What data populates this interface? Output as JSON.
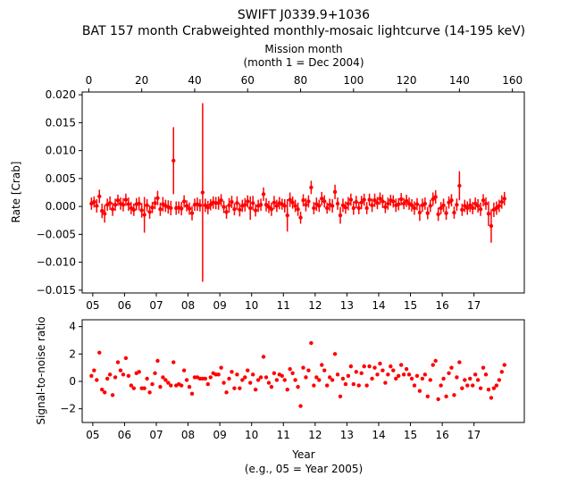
{
  "title_line1": "SWIFT J0339.9+1036",
  "title_line2": "BAT 157 month Crabweighted monthly-mosaic lightcurve (14-195 keV)",
  "colors": {
    "data": "#ff0000",
    "axes": "#000000"
  },
  "chart_data": [
    {
      "type": "scatter",
      "panel": "top",
      "ylabel": "Rate [Crab]",
      "top_axis_label_line1": "Mission month",
      "top_axis_label_line2": "(month 1 = Dec 2004)",
      "top_ticks": [
        0,
        20,
        40,
        60,
        80,
        100,
        120,
        140,
        160
      ],
      "top_tick_labels": [
        "0",
        "20",
        "40",
        "60",
        "80",
        "100",
        "120",
        "140",
        "160"
      ],
      "xlim_month": [
        -2.5,
        164.5
      ],
      "ylim": [
        -0.0155,
        0.0205
      ],
      "y_ticks": [
        -0.015,
        -0.01,
        -0.005,
        0.0,
        0.005,
        0.01,
        0.015,
        0.02
      ],
      "y_tick_labels": [
        "−0.015",
        "−0.010",
        "−0.005",
        "0.000",
        "0.005",
        "0.010",
        "0.015",
        "0.020"
      ],
      "x_ticks_month": [
        1.5,
        13.5,
        25.5,
        37.5,
        49.5,
        61.5,
        73.5,
        85.5,
        97.5,
        109.5,
        121.5,
        133.5,
        145.5
      ],
      "x_tick_labels": [
        "05",
        "06",
        "07",
        "08",
        "09",
        "10",
        "11",
        "12",
        "13",
        "14",
        "15",
        "16",
        "17"
      ],
      "months": [
        1,
        2,
        3,
        4,
        5,
        6,
        7,
        8,
        9,
        10,
        11,
        12,
        13,
        14,
        15,
        16,
        17,
        18,
        19,
        20,
        21,
        22,
        23,
        24,
        25,
        26,
        27,
        28,
        29,
        30,
        31,
        32,
        33,
        34,
        35,
        36,
        37,
        38,
        39,
        40,
        41,
        42,
        43,
        44,
        45,
        46,
        47,
        48,
        49,
        50,
        51,
        52,
        53,
        54,
        55,
        56,
        57,
        58,
        59,
        60,
        61,
        62,
        63,
        64,
        65,
        66,
        67,
        68,
        69,
        70,
        71,
        72,
        73,
        74,
        75,
        76,
        77,
        78,
        79,
        80,
        81,
        82,
        83,
        84,
        85,
        86,
        87,
        88,
        89,
        90,
        91,
        92,
        93,
        94,
        95,
        96,
        97,
        98,
        99,
        100,
        101,
        102,
        103,
        104,
        105,
        106,
        107,
        108,
        109,
        110,
        111,
        112,
        113,
        114,
        115,
        116,
        117,
        118,
        119,
        120,
        121,
        122,
        123,
        124,
        125,
        126,
        127,
        128,
        129,
        130,
        131,
        132,
        133,
        134,
        135,
        136,
        137,
        138,
        139,
        140,
        141,
        142,
        143,
        144,
        145,
        146,
        147,
        148,
        149,
        150,
        151,
        152,
        153,
        154,
        155,
        156,
        157
      ],
      "rate": [
        0.0005,
        0.0008,
        0.0001,
        0.0018,
        -0.0008,
        -0.0013,
        0.0003,
        0.0006,
        -0.0005,
        0.0003,
        0.0011,
        0.0005,
        0.0003,
        0.0012,
        0.0004,
        -0.0003,
        -0.0006,
        0.0004,
        0.0005,
        -0.0007,
        -0.0015,
        0.0002,
        -0.001,
        -0.0002,
        0.0006,
        0.0015,
        -0.0005,
        0.0004,
        0.0001,
        -0.0001,
        -0.0003,
        0.0082,
        -0.0003,
        -0.0002,
        -0.0004,
        0.0009,
        0.0001,
        -0.0004,
        -0.0012,
        0.0003,
        0.0004,
        0.0002,
        0.0025,
        0.0002,
        -0.0002,
        0.0003,
        0.0007,
        0.0006,
        0.0006,
        0.0011,
        -0.0001,
        -0.001,
        0.0002,
        0.0008,
        -0.0005,
        0.0006,
        -0.0006,
        0.0001,
        0.0003,
        0.0009,
        -0.0003,
        0.0006,
        -0.0007,
        0.0001,
        0.0003,
        0.0022,
        0.0003,
        -0.0001,
        -0.0005,
        0.0007,
        0.0001,
        0.0006,
        0.0004,
        0.0001,
        -0.0016,
        0.0012,
        0.0007,
        0.0001,
        -0.0005,
        -0.002,
        0.0011,
        0.0003,
        0.0009,
        0.0034,
        -0.0003,
        0.0004,
        0.0001,
        0.0014,
        0.0009,
        -0.0003,
        0.0003,
        0.0001,
        0.0026,
        0.0005,
        -0.0016,
        0.0002,
        -0.0002,
        0.0005,
        0.0012,
        -0.0003,
        0.0008,
        -0.0003,
        0.0007,
        0.0012,
        -0.0003,
        0.0012,
        0.0002,
        0.0011,
        0.0006,
        0.0014,
        0.0009,
        -0.0001,
        0.0005,
        0.0011,
        0.0009,
        0.0002,
        0.0004,
        0.0013,
        0.0005,
        0.001,
        0.0005,
        0.0002,
        -0.0003,
        0.0004,
        -0.0011,
        0.0002,
        0.0005,
        -0.0012,
        0.0001,
        0.0013,
        0.0017,
        -0.0014,
        -0.0003,
        0.0002,
        -0.0012,
        0.0007,
        0.0011,
        -0.0011,
        0.0003,
        0.0037,
        -0.0006,
        0.0001,
        -0.0003,
        0.0002,
        -0.0003,
        0.0005,
        0.0001,
        -0.0005,
        0.0011,
        0.0005,
        -0.0013,
        -0.0035,
        -0.0006,
        -0.0003,
        0.0001,
        0.0008,
        0.0014,
        0.0025,
        0.0007
      ],
      "rate_err": [
        0.0011,
        0.001,
        0.0012,
        0.0012,
        0.0013,
        0.0016,
        0.0011,
        0.0012,
        0.0012,
        0.0011,
        0.001,
        0.0011,
        0.0012,
        0.0011,
        0.0012,
        0.0011,
        0.0011,
        0.0011,
        0.0012,
        0.0013,
        0.0032,
        0.0011,
        0.0012,
        0.001,
        0.0011,
        0.0013,
        0.0012,
        0.0013,
        0.0011,
        0.0012,
        0.0013,
        0.006,
        0.0012,
        0.0011,
        0.0012,
        0.0011,
        0.001,
        0.0011,
        0.0013,
        0.0011,
        0.0012,
        0.0011,
        0.016,
        0.0012,
        0.0012,
        0.001,
        0.0011,
        0.0011,
        0.0012,
        0.0011,
        0.0011,
        0.0012,
        0.0013,
        0.0011,
        0.0011,
        0.0012,
        0.0012,
        0.0011,
        0.0012,
        0.0011,
        0.0021,
        0.0013,
        0.0011,
        0.0011,
        0.0011,
        0.0012,
        0.0012,
        0.0011,
        0.0012,
        0.0012,
        0.0011,
        0.0011,
        0.001,
        0.0012,
        0.0029,
        0.0013,
        0.0011,
        0.0011,
        0.0012,
        0.0011,
        0.0011,
        0.0012,
        0.0011,
        0.0012,
        0.0011,
        0.0012,
        0.0011,
        0.0012,
        0.0011,
        0.001,
        0.0011,
        0.0012,
        0.0013,
        0.0011,
        0.0015,
        0.0012,
        0.0011,
        0.0012,
        0.0011,
        0.0012,
        0.0011,
        0.0011,
        0.0012,
        0.0011,
        0.0011,
        0.0011,
        0.0012,
        0.0012,
        0.0011,
        0.0011,
        0.0012,
        0.0011,
        0.0011,
        0.001,
        0.0011,
        0.0012,
        0.0011,
        0.0011,
        0.001,
        0.0011,
        0.0011,
        0.0011,
        0.0012,
        0.0011,
        0.0015,
        0.0012,
        0.0011,
        0.0011,
        0.0011,
        0.0012,
        0.0012,
        0.0012,
        0.0011,
        0.0012,
        0.0012,
        0.0011,
        0.0011,
        0.0011,
        0.0011,
        0.0026,
        0.0011,
        0.0011,
        0.0012,
        0.0012,
        0.0011,
        0.0011,
        0.0012,
        0.0012,
        0.0011,
        0.0011,
        0.0022,
        0.003,
        0.0013,
        0.0012,
        0.0011,
        0.0012,
        0.0012,
        0.0011,
        0.0011
      ],
      "xlabel": "",
      "grid": false
    },
    {
      "type": "scatter",
      "panel": "bottom",
      "ylabel": "Signal-to-noise ratio",
      "xlabel_line1": "Year",
      "xlabel_line2": "(e.g., 05 = Year 2005)",
      "ylim": [
        -3,
        4.5
      ],
      "y_ticks": [
        -2,
        0,
        2,
        4
      ],
      "y_tick_labels": [
        "−2",
        "0",
        "2",
        "4"
      ],
      "x_ticks_month": [
        1.5,
        13.5,
        25.5,
        37.5,
        49.5,
        61.5,
        73.5,
        85.5,
        97.5,
        109.5,
        121.5,
        133.5,
        145.5
      ],
      "x_tick_labels": [
        "05",
        "06",
        "07",
        "08",
        "09",
        "10",
        "11",
        "12",
        "13",
        "14",
        "15",
        "16",
        "17"
      ],
      "snr": [
        0.4,
        0.8,
        0.1,
        2.1,
        -0.6,
        -0.8,
        0.2,
        0.5,
        -1.0,
        0.3,
        1.4,
        0.8,
        0.5,
        1.7,
        0.4,
        -0.3,
        -0.5,
        0.6,
        0.7,
        -0.5,
        -0.5,
        0.2,
        -0.8,
        -0.2,
        0.6,
        1.5,
        -0.4,
        0.3,
        0.1,
        -0.1,
        -0.3,
        1.4,
        -0.3,
        -0.2,
        -0.3,
        0.8,
        0.1,
        -0.4,
        -0.9,
        0.3,
        0.3,
        0.2,
        0.2,
        0.2,
        -0.2,
        0.3,
        0.6,
        0.5,
        0.5,
        1.0,
        -0.1,
        -0.8,
        0.2,
        0.7,
        -0.5,
        0.5,
        -0.5,
        0.1,
        0.3,
        0.8,
        -0.1,
        0.5,
        -0.6,
        0.1,
        0.3,
        1.8,
        0.3,
        -0.1,
        -0.4,
        0.6,
        0.1,
        0.5,
        0.4,
        0.1,
        -0.6,
        0.9,
        0.6,
        0.1,
        -0.4,
        -1.8,
        1.0,
        0.3,
        0.8,
        2.8,
        -0.3,
        0.3,
        0.1,
        1.2,
        0.8,
        -0.3,
        0.3,
        0.1,
        2.0,
        0.5,
        -1.1,
        0.2,
        -0.2,
        0.4,
        1.1,
        -0.2,
        0.7,
        -0.3,
        0.6,
        1.1,
        -0.3,
        1.1,
        0.2,
        1.0,
        0.5,
        1.3,
        0.8,
        -0.1,
        0.5,
        1.1,
        0.8,
        0.2,
        0.4,
        1.2,
        0.5,
        0.9,
        0.5,
        0.2,
        -0.3,
        0.4,
        -0.7,
        0.2,
        0.5,
        -1.1,
        0.1,
        1.2,
        1.5,
        -1.3,
        -0.3,
        0.2,
        -1.1,
        0.6,
        1.0,
        -1.0,
        0.3,
        1.4,
        -0.5,
        0.1,
        -0.3,
        0.2,
        -0.3,
        0.5,
        0.1,
        -0.5,
        1.0,
        0.5,
        -0.6,
        -1.2,
        -0.5,
        -0.3,
        0.1,
        0.7,
        1.2,
        2.1,
        0.6
      ],
      "grid": false
    }
  ]
}
